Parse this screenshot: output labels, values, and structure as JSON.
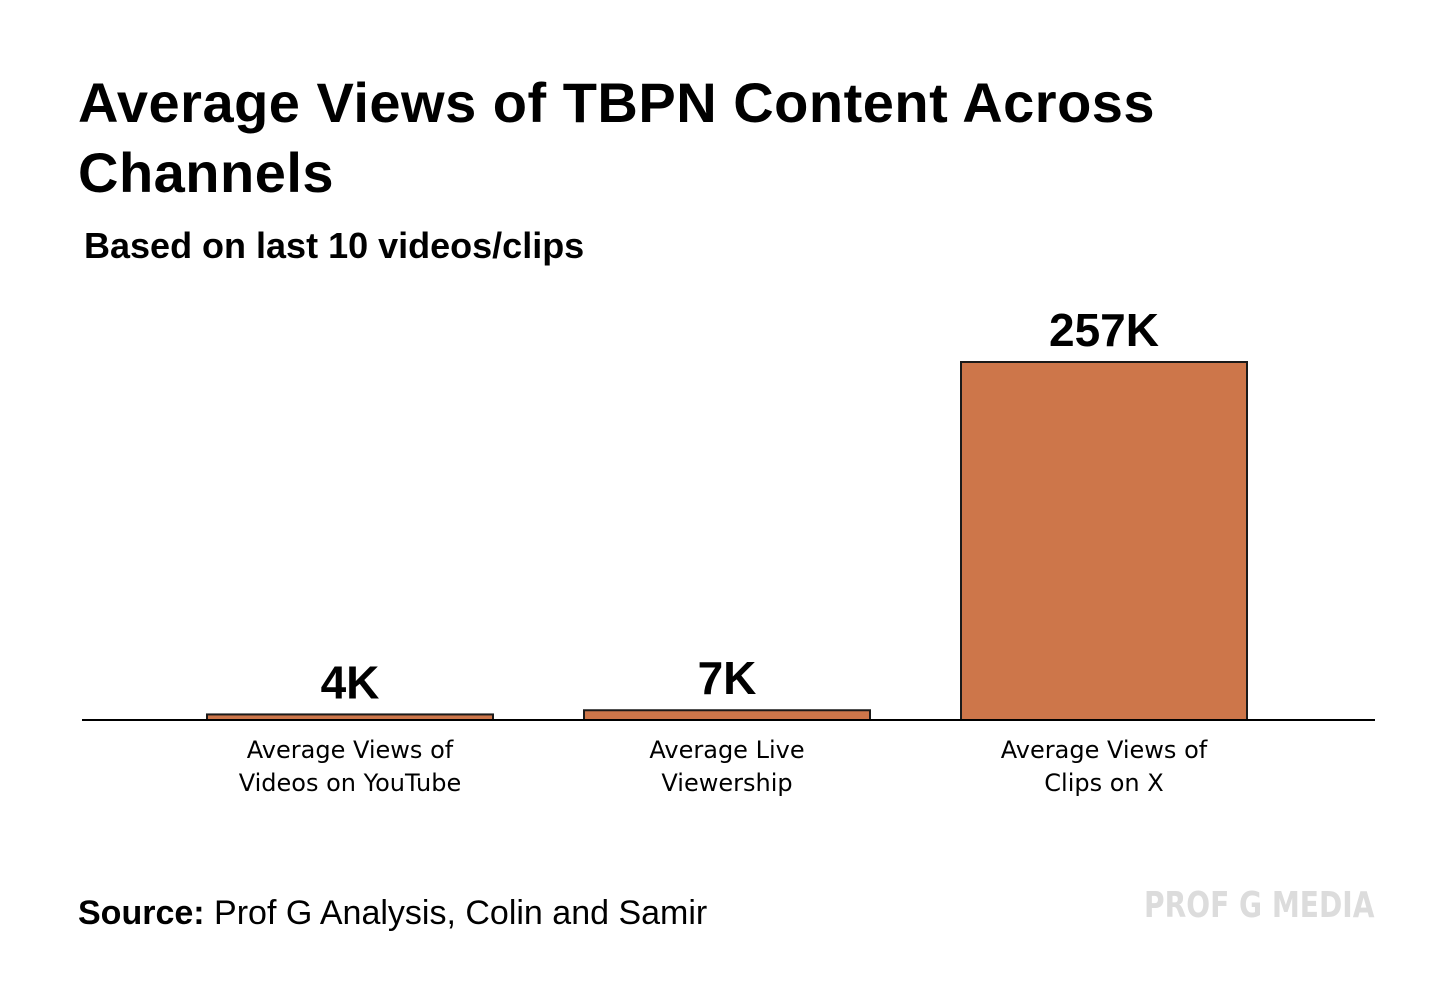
{
  "chart_data": {
    "type": "bar",
    "title": "Average Views of TBPN Content Across Channels",
    "subtitle": "Based on last 10 videos/clips",
    "categories": [
      [
        "Average Views of",
        "Videos on YouTube"
      ],
      [
        "Average Live",
        "Viewership"
      ],
      [
        "Average Views of",
        "Clips on X"
      ]
    ],
    "values": [
      4,
      7,
      257
    ],
    "value_labels": [
      "4K",
      "7K",
      "257K"
    ],
    "units": "thousand views",
    "ylim": [
      0,
      257
    ],
    "xlabel": "",
    "ylabel": "",
    "grid": false,
    "bar_color": "#CD764A",
    "bar_edge_color": "#1a1a1a",
    "axis_color": "#000000"
  },
  "footer": {
    "source_key": "Source:",
    "source_text": " Prof G Analysis, Colin and Samir"
  },
  "brand": {
    "logo_text": "PROF G MEDIA",
    "color": "#dcdcdc"
  }
}
